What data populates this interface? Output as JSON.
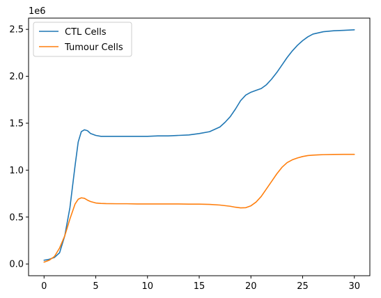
{
  "chart_data": {
    "type": "line",
    "title": "",
    "xlabel": "",
    "ylabel": "",
    "y_offset_text": "1e6",
    "xlim": [
      -1.5,
      31.5
    ],
    "ylim": [
      -0.125,
      2.62
    ],
    "x_ticks": [
      0,
      5,
      10,
      15,
      20,
      25,
      30
    ],
    "y_ticks": [
      0.0,
      0.5,
      1.0,
      1.5,
      2.0,
      2.5
    ],
    "x_tick_labels": [
      "0",
      "5",
      "10",
      "15",
      "20",
      "25",
      "30"
    ],
    "y_tick_labels": [
      "0.0",
      "0.5",
      "1.0",
      "1.5",
      "2.0",
      "2.5"
    ],
    "grid": false,
    "legend_position": "upper-left",
    "series": [
      {
        "name": "CTL Cells",
        "color": "#1f77b4",
        "x": [
          0,
          0.5,
          1.0,
          1.5,
          2.0,
          2.5,
          3.0,
          3.3,
          3.6,
          3.9,
          4.2,
          4.5,
          5.0,
          5.5,
          6.0,
          7.0,
          8.0,
          9.0,
          10.0,
          11.0,
          12.0,
          13.0,
          14.0,
          15.0,
          16.0,
          17.0,
          17.5,
          18.0,
          18.5,
          19.0,
          19.5,
          20.0,
          20.5,
          21.0,
          21.5,
          22.0,
          22.5,
          23.0,
          23.5,
          24.0,
          24.5,
          25.0,
          25.5,
          26.0,
          27.0,
          28.0,
          29.0,
          30.0
        ],
        "y": [
          0.04,
          0.05,
          0.07,
          0.12,
          0.3,
          0.6,
          1.05,
          1.3,
          1.41,
          1.43,
          1.42,
          1.39,
          1.37,
          1.36,
          1.36,
          1.36,
          1.36,
          1.36,
          1.36,
          1.365,
          1.365,
          1.37,
          1.375,
          1.39,
          1.41,
          1.46,
          1.51,
          1.57,
          1.65,
          1.74,
          1.8,
          1.83,
          1.85,
          1.87,
          1.91,
          1.97,
          2.04,
          2.12,
          2.2,
          2.27,
          2.33,
          2.38,
          2.42,
          2.45,
          2.475,
          2.485,
          2.49,
          2.495
        ]
      },
      {
        "name": "Tumour Cells",
        "color": "#ff7f0e",
        "x": [
          0,
          0.5,
          1.0,
          1.5,
          2.0,
          2.5,
          3.0,
          3.3,
          3.6,
          3.9,
          4.2,
          4.5,
          5.0,
          5.5,
          6.0,
          7.0,
          8.0,
          9.0,
          10.0,
          11.0,
          12.0,
          13.0,
          14.0,
          15.0,
          16.0,
          17.0,
          18.0,
          18.5,
          19.0,
          19.5,
          20.0,
          20.5,
          21.0,
          21.5,
          22.0,
          22.5,
          23.0,
          23.5,
          24.0,
          24.5,
          25.0,
          25.5,
          26.0,
          26.5,
          27.0,
          28.0,
          29.0,
          30.0
        ],
        "y": [
          0.02,
          0.04,
          0.08,
          0.17,
          0.3,
          0.48,
          0.64,
          0.69,
          0.705,
          0.7,
          0.68,
          0.665,
          0.65,
          0.645,
          0.643,
          0.642,
          0.642,
          0.64,
          0.64,
          0.64,
          0.64,
          0.64,
          0.638,
          0.638,
          0.635,
          0.628,
          0.615,
          0.605,
          0.598,
          0.6,
          0.62,
          0.66,
          0.72,
          0.8,
          0.88,
          0.96,
          1.03,
          1.08,
          1.11,
          1.13,
          1.145,
          1.155,
          1.16,
          1.163,
          1.165,
          1.167,
          1.168,
          1.168
        ]
      }
    ]
  }
}
